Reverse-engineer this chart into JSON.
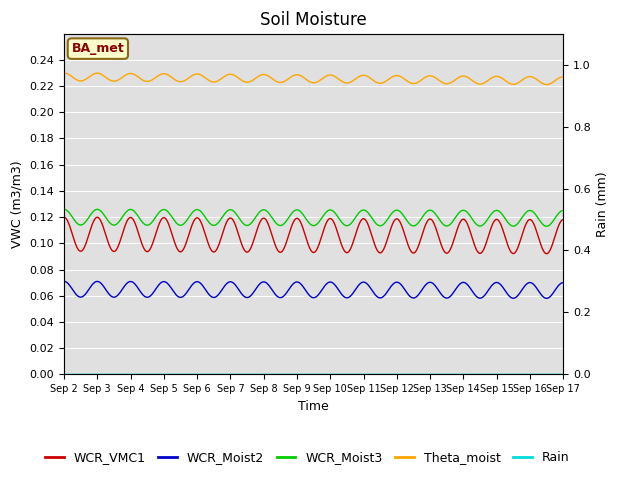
{
  "title": "Soil Moisture",
  "ylabel_left": "VWC (m3/m3)",
  "ylabel_right": "Rain (mm)",
  "xlabel": "Time",
  "annotation": "BA_met",
  "background_color": "#ffffff",
  "plot_bg_color": "#e0e0e0",
  "ylim_left": [
    0.0,
    0.26
  ],
  "ylim_right": [
    0.0,
    1.1
  ],
  "yticks_left": [
    0.0,
    0.02,
    0.04,
    0.06,
    0.08,
    0.1,
    0.12,
    0.14,
    0.16,
    0.18,
    0.2,
    0.22,
    0.24
  ],
  "yticks_right": [
    0.0,
    0.2,
    0.4,
    0.6,
    0.8,
    1.0
  ],
  "n_days": 15,
  "n_points": 1500,
  "series": {
    "WCR_VMC1": {
      "color": "#cc0000",
      "mean": 0.107,
      "amplitude": 0.013,
      "period_days": 1.0,
      "phase": 1.5707963,
      "trend": -0.002
    },
    "WCR_Moist2": {
      "color": "#0000cc",
      "mean": 0.065,
      "amplitude": 0.006,
      "period_days": 1.0,
      "phase": 1.5707963,
      "trend": -0.001
    },
    "WCR_Moist3": {
      "color": "#00cc00",
      "mean": 0.12,
      "amplitude": 0.006,
      "period_days": 1.0,
      "phase": 1.5707963,
      "trend": -0.001
    },
    "Theta_moist": {
      "color": "#ffa500",
      "mean": 0.227,
      "amplitude": 0.003,
      "period_days": 1.0,
      "phase": 1.5707963,
      "trend": -0.003
    },
    "Rain": {
      "color": "#00dddd",
      "mean": 0.0,
      "amplitude": 0.0,
      "period_days": 1.0,
      "phase": 0.0,
      "trend": 0.0
    }
  },
  "xtick_labels": [
    "Sep 2",
    "Sep 3",
    "Sep 4",
    "Sep 5",
    "Sep 6",
    "Sep 7",
    "Sep 8",
    "Sep 9",
    "Sep 10",
    "Sep 11",
    "Sep 12",
    "Sep 13",
    "Sep 14",
    "Sep 15",
    "Sep 16",
    "Sep 17"
  ],
  "title_fontsize": 12,
  "axis_fontsize": 9,
  "tick_fontsize": 8,
  "legend_fontsize": 9
}
